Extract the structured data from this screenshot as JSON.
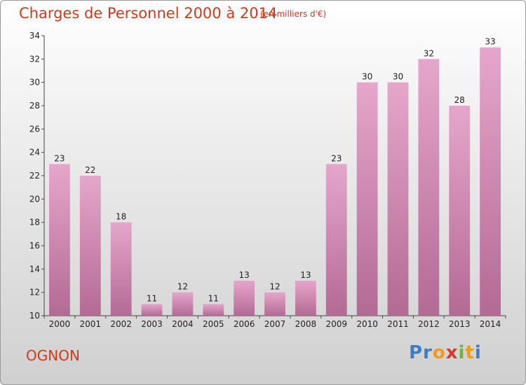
{
  "header": {
    "title": "Charges de Personnel 2000 à 2014",
    "unit": "(en milliers d'€)"
  },
  "footer": {
    "place": "OGNON",
    "logo_text": "Proxiti"
  },
  "colors": {
    "title": "#d03a1c",
    "bar_top": "#e6a6cc",
    "bar_bottom": "#b36a94"
  },
  "chart_data": {
    "type": "bar",
    "categories": [
      "2000",
      "2001",
      "2002",
      "2003",
      "2004",
      "2005",
      "2006",
      "2007",
      "2008",
      "2009",
      "2010",
      "2011",
      "2012",
      "2013",
      "2014"
    ],
    "values": [
      23,
      22,
      18,
      11,
      12,
      11,
      13,
      12,
      13,
      23,
      30,
      30,
      32,
      28,
      33
    ],
    "ylim": [
      10,
      34
    ],
    "yticks": [
      10,
      12,
      14,
      16,
      18,
      20,
      22,
      24,
      26,
      28,
      30,
      32,
      34
    ],
    "grid": false,
    "xlabel": "",
    "ylabel": ""
  }
}
